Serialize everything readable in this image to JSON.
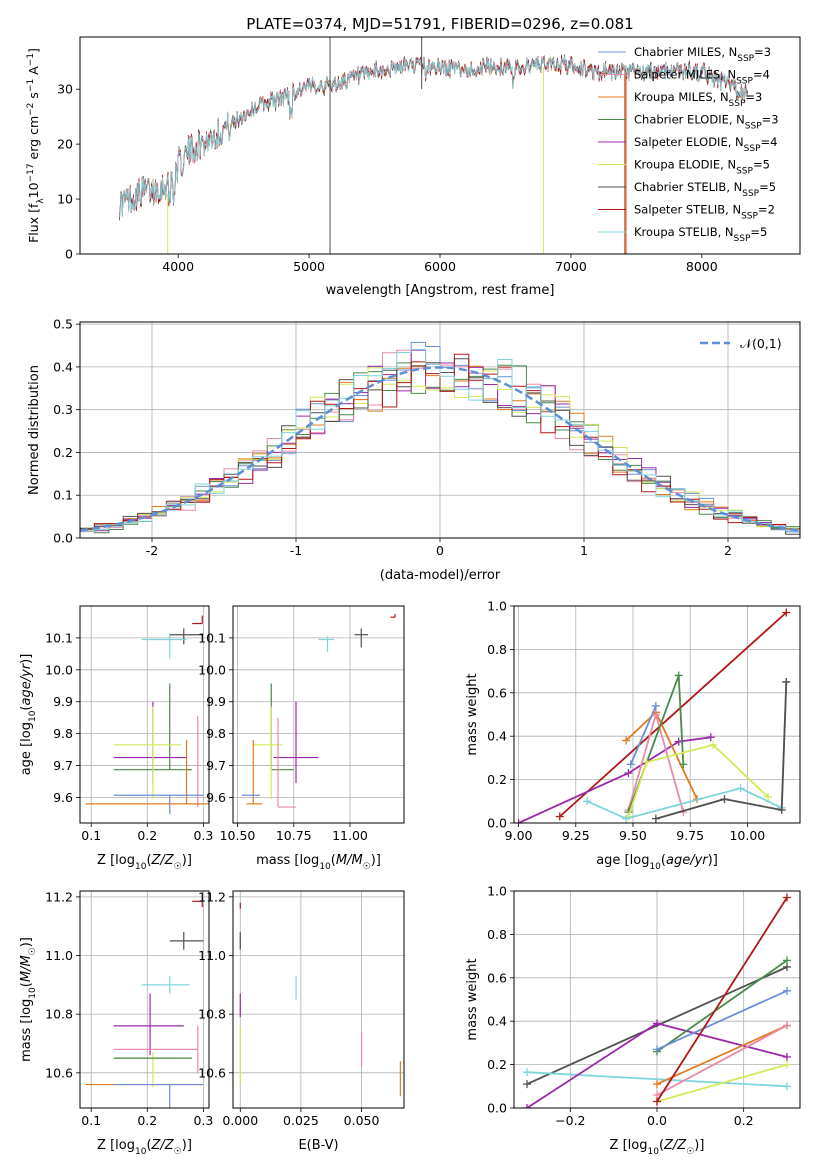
{
  "figure_title": "PLATE=0374, MJD=51791, FIBERID=0296, z=0.081",
  "colors": {
    "Chabrier MILES": "#6b8fd6",
    "Salpeter MILES": "#e88aa8",
    "Kroupa MILES": "#e07b20",
    "Chabrier ELODIE": "#4a8a4a",
    "Salpeter ELODIE": "#9a2aa8",
    "Kroupa ELODIE": "#d4e85a",
    "Chabrier STELIB": "#505050",
    "Salpeter STELIB": "#b01818",
    "Kroupa STELIB": "#7fd4dc",
    "gauss": "#5b8fd6"
  },
  "chart_data": [
    {
      "id": "spectrum",
      "type": "line",
      "xlabel": "wavelength [Angstrom, rest frame]",
      "ylabel": "Flux [f_λ10^-17 erg cm^-2 s^-1 A^-1]",
      "xlim": [
        3250,
        8750
      ],
      "ylim": [
        0,
        39.5
      ],
      "xticks": [
        4000,
        5000,
        6000,
        7000,
        8000
      ],
      "yticks": [
        0,
        10,
        20,
        30
      ],
      "legend_position": "upper-right",
      "legend": [
        {
          "model": "Chabrier MILES",
          "nssp": "3"
        },
        {
          "model": "Salpeter MILES",
          "nssp": "4"
        },
        {
          "model": "Kroupa MILES",
          "nssp": "3"
        },
        {
          "model": "Chabrier ELODIE",
          "nssp": "3"
        },
        {
          "model": "Salpeter ELODIE",
          "nssp": "4"
        },
        {
          "model": "Kroupa ELODIE",
          "nssp": "5"
        },
        {
          "model": "Chabrier STELIB",
          "nssp": "5"
        },
        {
          "model": "Salpeter STELIB",
          "nssp": "2"
        },
        {
          "model": "Kroupa STELIB",
          "nssp": "5"
        }
      ],
      "continuum_x": [
        3550,
        3700,
        3900,
        4000,
        4100,
        4300,
        4400,
        4600,
        4800,
        5000,
        5200,
        5400,
        5600,
        5800,
        6000,
        6200,
        6400,
        6600,
        6800,
        7000,
        7200,
        7400,
        7600,
        7800,
        8000,
        8200,
        8350
      ],
      "continuum_y": [
        9,
        11,
        12.5,
        16,
        19,
        22,
        23.5,
        27,
        28.5,
        30.5,
        31,
        32.5,
        33.5,
        34.5,
        34,
        33.5,
        34,
        34,
        34.5,
        34.5,
        33,
        33,
        33,
        33.5,
        33,
        31,
        29
      ],
      "spikes": [
        {
          "x": 3920,
          "model": "Kroupa ELODIE",
          "from": 11,
          "to": 0
        },
        {
          "x": 5160,
          "model": "Chabrier STELIB",
          "from": 39.5,
          "to": 0
        },
        {
          "x": 5860,
          "model": "Chabrier STELIB",
          "from": 39.5,
          "to": 30
        },
        {
          "x": 6790,
          "model": "Kroupa ELODIE",
          "from": 34,
          "to": 0
        },
        {
          "x": 7410,
          "model": "Kroupa MILES",
          "from": 33,
          "to": 0
        },
        {
          "x": 7420,
          "model": "Salpeter STELIB",
          "from": 33,
          "to": 0
        }
      ]
    },
    {
      "id": "residuals",
      "type": "histogram",
      "xlabel": "(data-model)/error",
      "ylabel": "Normed distribution",
      "xlim": [
        -2.5,
        2.5
      ],
      "ylim": [
        0,
        0.505
      ],
      "xticks": [
        -2,
        -1,
        0,
        1,
        2
      ],
      "yticks": [
        0.0,
        0.1,
        0.2,
        0.3,
        0.4,
        0.5
      ],
      "bin_width": 0.1,
      "gaussian_label": "𝒩(0,1)",
      "legend_position": "upper-right"
    },
    {
      "id": "age_vs_Z",
      "type": "scatter",
      "xlabel": "Z [log10(Z/Z☉)]",
      "ylabel": "age [log10(age/yr)]",
      "xlim": [
        0.08,
        0.31
      ],
      "ylim": [
        9.52,
        10.2
      ],
      "xticks": [
        0.1,
        0.2,
        0.3
      ],
      "yticks": [
        9.6,
        9.7,
        9.8,
        9.9,
        10.0,
        10.1
      ],
      "points": [
        {
          "model": "Salpeter STELIB",
          "x": 0.298,
          "y": 10.145,
          "xerr": [
            0.018,
            0.0
          ],
          "yerr": [
            0.0,
            0.025
          ]
        },
        {
          "model": "Chabrier STELIB",
          "x": 0.265,
          "y": 10.11,
          "xerr": [
            0.025,
            0.035
          ],
          "yerr": [
            0.03,
            0.02
          ]
        },
        {
          "model": "Kroupa STELIB",
          "x": 0.24,
          "y": 10.095,
          "xerr": [
            0.05,
            0.03
          ],
          "yerr": [
            0.06,
            0.02
          ]
        },
        {
          "model": "Chabrier ELODIE",
          "x": 0.24,
          "y": 9.687,
          "xerr": [
            0.1,
            0.04
          ],
          "yerr": [
            0.0,
            0.27
          ]
        },
        {
          "model": "Salpeter ELODIE",
          "x": 0.21,
          "y": 9.725,
          "xerr": [
            0.07,
            0.06
          ],
          "yerr": [
            0.08,
            0.175
          ]
        },
        {
          "model": "Kroupa ELODIE",
          "x": 0.21,
          "y": 9.765,
          "xerr": [
            0.07,
            0.05
          ],
          "yerr": [
            0.17,
            0.12
          ]
        },
        {
          "model": "Salpeter MILES",
          "x": 0.29,
          "y": 9.72,
          "xerr": [
            0.0,
            0.0
          ],
          "yerr": [
            0.15,
            0.135
          ]
        },
        {
          "model": "Kroupa MILES",
          "x": 0.27,
          "y": 9.58,
          "xerr": [
            0.18,
            0.04
          ],
          "yerr": [
            0.0,
            0.2
          ]
        },
        {
          "model": "Chabrier MILES",
          "x": 0.24,
          "y": 9.607,
          "xerr": [
            0.1,
            0.06
          ],
          "yerr": [
            0.06,
            0.0
          ]
        }
      ]
    },
    {
      "id": "age_vs_mass",
      "type": "scatter",
      "xlabel": "mass [log10(M/M☉)]",
      "ylabel": "",
      "xlim": [
        10.48,
        11.24
      ],
      "ylim": [
        9.52,
        10.2
      ],
      "xticks": [
        10.5,
        10.75,
        11.0
      ],
      "xtick_labels": [
        "10.50",
        "10.75",
        "11.00"
      ],
      "yticks": [
        9.6,
        9.7,
        9.8,
        9.9,
        10.0,
        10.1
      ],
      "points": [
        {
          "model": "Salpeter STELIB",
          "x": 11.2,
          "y": 10.165,
          "xerr": [
            0.02,
            0.0
          ],
          "yerr": [
            0.0,
            0.01
          ]
        },
        {
          "model": "Chabrier STELIB",
          "x": 11.05,
          "y": 10.11,
          "xerr": [
            0.03,
            0.03
          ],
          "yerr": [
            0.04,
            0.02
          ]
        },
        {
          "model": "Kroupa STELIB",
          "x": 10.9,
          "y": 10.095,
          "xerr": [
            0.04,
            0.03
          ],
          "yerr": [
            0.04,
            0.01
          ]
        },
        {
          "model": "Chabrier ELODIE",
          "x": 10.65,
          "y": 9.687,
          "xerr": [
            0.0,
            0.1
          ],
          "yerr": [
            0.0,
            0.27
          ]
        },
        {
          "model": "Salpeter ELODIE",
          "x": 10.76,
          "y": 9.725,
          "xerr": [
            0.1,
            0.1
          ],
          "yerr": [
            0.08,
            0.175
          ]
        },
        {
          "model": "Kroupa ELODIE",
          "x": 10.65,
          "y": 9.765,
          "xerr": [
            0.08,
            0.05
          ],
          "yerr": [
            0.17,
            0.12
          ]
        },
        {
          "model": "Salpeter MILES",
          "x": 10.68,
          "y": 9.57,
          "xerr": [
            0.0,
            0.08
          ],
          "yerr": [
            0.0,
            0.28
          ]
        },
        {
          "model": "Kroupa MILES",
          "x": 10.57,
          "y": 9.58,
          "xerr": [
            0.03,
            0.04
          ],
          "yerr": [
            0.0,
            0.2
          ]
        },
        {
          "model": "Chabrier MILES",
          "x": 10.6,
          "y": 9.607,
          "xerr": [
            0.08,
            0.0
          ],
          "yerr": [
            0.0,
            0.0
          ]
        }
      ]
    },
    {
      "id": "weight_vs_age",
      "type": "line",
      "xlabel": "age [log10(age/yr)]",
      "ylabel": "mass weight",
      "xlim": [
        8.98,
        10.23
      ],
      "ylim": [
        0,
        1.0
      ],
      "xticks": [
        9.0,
        9.25,
        9.5,
        9.75,
        10.0
      ],
      "xtick_labels": [
        "9.00",
        "9.25",
        "9.50",
        "9.75",
        "10.00"
      ],
      "yticks": [
        0.0,
        0.2,
        0.4,
        0.6,
        0.8,
        1.0
      ],
      "series": [
        {
          "model": "Salpeter STELIB",
          "x": [
            9.18,
            10.17
          ],
          "y": [
            0.03,
            0.97
          ]
        },
        {
          "model": "Salpeter ELODIE",
          "x": [
            9.0,
            9.48,
            9.7,
            9.84
          ],
          "y": [
            0.0,
            0.23,
            0.375,
            0.395
          ]
        },
        {
          "model": "Kroupa MILES",
          "x": [
            9.47,
            9.6,
            9.78
          ],
          "y": [
            0.38,
            0.51,
            0.11
          ]
        },
        {
          "model": "Chabrier MILES",
          "x": [
            9.49,
            9.6
          ],
          "y": [
            0.27,
            0.54
          ]
        },
        {
          "model": "Salpeter MILES",
          "x": [
            9.48,
            9.6,
            9.72
          ],
          "y": [
            0.06,
            0.5,
            0.05
          ]
        },
        {
          "model": "Chabrier ELODIE",
          "x": [
            9.48,
            9.7,
            9.72
          ],
          "y": [
            0.05,
            0.68,
            0.27
          ]
        },
        {
          "model": "Kroupa ELODIE",
          "x": [
            9.48,
            9.56,
            9.85,
            10.09
          ],
          "y": [
            0.03,
            0.28,
            0.36,
            0.12
          ]
        },
        {
          "model": "Kroupa STELIB",
          "x": [
            9.3,
            9.47,
            9.97,
            10.15,
            10.17
          ],
          "y": [
            0.1,
            0.02,
            0.16,
            0.07,
            0.65
          ]
        },
        {
          "model": "Chabrier STELIB",
          "x": [
            9.6,
            9.9,
            10.15,
            10.17
          ],
          "y": [
            0.02,
            0.11,
            0.06,
            0.65
          ]
        }
      ]
    },
    {
      "id": "mass_vs_Z",
      "type": "scatter",
      "xlabel": "Z [log10(Z/Z☉)]",
      "ylabel": "mass [log10(M/M☉)]",
      "xlim": [
        0.08,
        0.31
      ],
      "ylim": [
        10.48,
        11.22
      ],
      "xticks": [
        0.1,
        0.2,
        0.3
      ],
      "yticks": [
        10.6,
        10.8,
        11.0,
        11.2
      ],
      "points": [
        {
          "model": "Salpeter STELIB",
          "x": 0.298,
          "y": 11.185,
          "xerr": [
            0.018,
            0.0
          ],
          "yerr": [
            0.02,
            0.0
          ]
        },
        {
          "model": "Chabrier STELIB",
          "x": 0.265,
          "y": 11.05,
          "xerr": [
            0.025,
            0.035
          ],
          "yerr": [
            0.03,
            0.03
          ]
        },
        {
          "model": "Kroupa STELIB",
          "x": 0.24,
          "y": 10.9,
          "xerr": [
            0.05,
            0.035
          ],
          "yerr": [
            0.03,
            0.03
          ]
        },
        {
          "model": "Salpeter ELODIE",
          "x": 0.205,
          "y": 10.76,
          "xerr": [
            0.065,
            0.06
          ],
          "yerr": [
            0.1,
            0.11
          ]
        },
        {
          "model": "Salpeter MILES",
          "x": 0.29,
          "y": 10.68,
          "xerr": [
            0.15,
            0.0
          ],
          "yerr": [
            0.08,
            0.08
          ]
        },
        {
          "model": "Kroupa ELODIE",
          "x": 0.21,
          "y": 10.65,
          "xerr": [
            0.07,
            0.05
          ],
          "yerr": [
            0.1,
            0.02
          ]
        },
        {
          "model": "Chabrier ELODIE",
          "x": 0.24,
          "y": 10.65,
          "xerr": [
            0.1,
            0.04
          ],
          "yerr": [
            0.0,
            0.0
          ]
        },
        {
          "model": "Kroupa MILES",
          "x": 0.27,
          "y": 10.56,
          "xerr": [
            0.18,
            0.03
          ],
          "yerr": [
            0.0,
            0.0
          ]
        },
        {
          "model": "Chabrier MILES",
          "x": 0.24,
          "y": 10.56,
          "xerr": [
            0.1,
            0.06
          ],
          "yerr": [
            0.1,
            0.0
          ]
        }
      ]
    },
    {
      "id": "mass_vs_ebv",
      "type": "scatter",
      "xlabel": "E(B-V)",
      "ylabel": "",
      "xlim": [
        -0.003,
        0.0675
      ],
      "ylim": [
        10.48,
        11.22
      ],
      "xticks": [
        0.0,
        0.025,
        0.05
      ],
      "xtick_labels": [
        "0.000",
        "0.025",
        "0.050"
      ],
      "yticks": [
        10.6,
        10.8,
        11.0,
        11.2
      ],
      "points": [
        {
          "model": "Salpeter STELIB",
          "x": 0.0,
          "y": 11.17,
          "yerr": [
            0.01,
            0.01
          ]
        },
        {
          "model": "Chabrier STELIB",
          "x": 0.0,
          "y": 11.05,
          "yerr": [
            0.03,
            0.03
          ]
        },
        {
          "model": "Kroupa STELIB",
          "x": 0.023,
          "y": 10.89,
          "yerr": [
            0.04,
            0.04
          ]
        },
        {
          "model": "Salpeter ELODIE",
          "x": 0.0,
          "y": 10.83,
          "yerr": [
            0.04,
            0.04
          ]
        },
        {
          "model": "Kroupa ELODIE",
          "x": 0.0,
          "y": 10.66,
          "yerr": [
            0.1,
            0.1
          ]
        },
        {
          "model": "Salpeter MILES",
          "x": 0.05,
          "y": 10.68,
          "yerr": [
            0.06,
            0.06
          ]
        },
        {
          "model": "Kroupa MILES",
          "x": 0.066,
          "y": 10.58,
          "yerr": [
            0.06,
            0.06
          ]
        }
      ]
    },
    {
      "id": "weight_vs_Z",
      "type": "line",
      "xlabel": "Z [log10(Z/Z☉)]",
      "ylabel": "mass weight",
      "xlim": [
        -0.33,
        0.33
      ],
      "ylim": [
        0,
        1.0
      ],
      "xticks": [
        -0.2,
        0.0,
        0.2
      ],
      "xtick_labels": [
        "−0.2",
        "0.0",
        "0.2"
      ],
      "yticks": [
        0.0,
        0.2,
        0.4,
        0.6,
        0.8,
        1.0
      ],
      "series": [
        {
          "model": "Chabrier STELIB",
          "x": [
            -0.3,
            0.3
          ],
          "y": [
            0.11,
            0.65
          ]
        },
        {
          "model": "Kroupa STELIB",
          "x": [
            -0.3,
            0.3
          ],
          "y": [
            0.165,
            0.1
          ]
        },
        {
          "model": "Salpeter ELODIE",
          "x": [
            -0.3,
            0.0,
            0.3
          ],
          "y": [
            0.0,
            0.39,
            0.235
          ]
        },
        {
          "model": "Chabrier ELODIE",
          "x": [
            0.0,
            0.3
          ],
          "y": [
            0.26,
            0.68
          ]
        },
        {
          "model": "Chabrier MILES",
          "x": [
            0.0,
            0.3
          ],
          "y": [
            0.27,
            0.54
          ]
        },
        {
          "model": "Kroupa MILES",
          "x": [
            0.0,
            0.3
          ],
          "y": [
            0.11,
            0.38
          ]
        },
        {
          "model": "Salpeter MILES",
          "x": [
            0.0,
            0.3
          ],
          "y": [
            0.06,
            0.38
          ]
        },
        {
          "model": "Kroupa ELODIE",
          "x": [
            0.0,
            0.3
          ],
          "y": [
            0.03,
            0.2
          ]
        },
        {
          "model": "Salpeter STELIB",
          "x": [
            0.0,
            0.3
          ],
          "y": [
            0.03,
            0.97
          ]
        }
      ]
    }
  ]
}
